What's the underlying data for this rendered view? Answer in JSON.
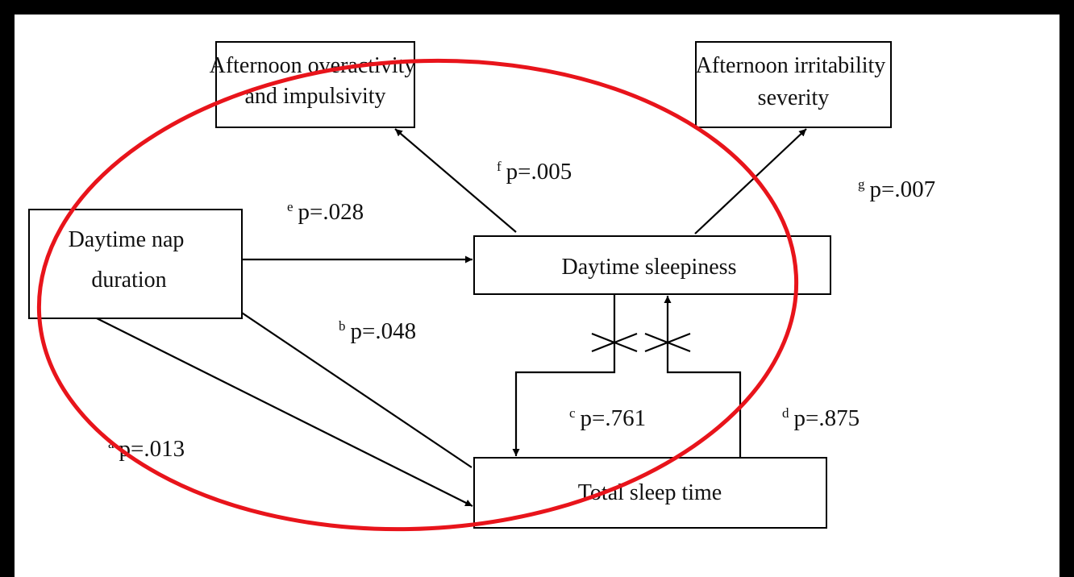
{
  "nodes": [
    {
      "lines": [
        "Afternoon overactivity",
        "and impulsivity"
      ]
    },
    {
      "lines": [
        "Afternoon irritability",
        "severity"
      ]
    },
    {
      "lines": [
        "Daytime nap",
        "duration"
      ]
    },
    {
      "lines": [
        "Daytime sleepiness"
      ]
    },
    {
      "lines": [
        "Total sleep time"
      ]
    }
  ],
  "edges": [
    {
      "sup": "f",
      "label": "p=.005"
    },
    {
      "sup": "g",
      "label": "p=.007"
    },
    {
      "sup": "e",
      "label": "p=.028"
    },
    {
      "sup": "b",
      "label": "p=.048"
    },
    {
      "sup": "a",
      "label": "p=.013"
    },
    {
      "sup": "c",
      "label": "p=.761"
    },
    {
      "sup": "d",
      "label": "p=.875"
    }
  ]
}
